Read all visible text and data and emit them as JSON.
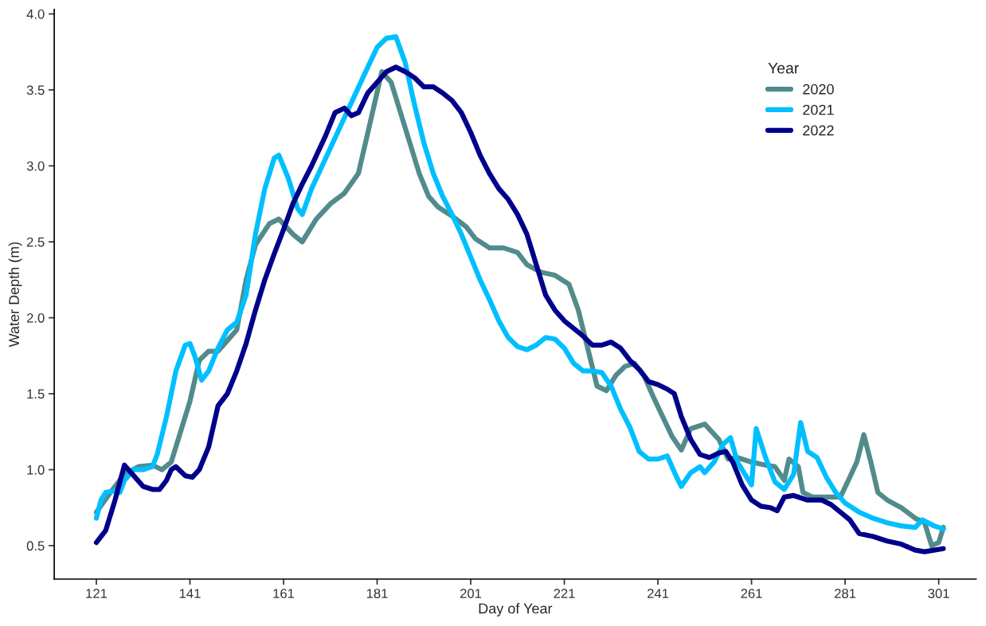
{
  "chart_data": {
    "type": "line",
    "xlabel": "Day of Year",
    "ylabel": "Water Depth (m)",
    "legend_title": "Year",
    "legend": "top right",
    "grid": false,
    "marker": "none",
    "line_style": "solid",
    "xlim": [
      112,
      309
    ],
    "xticks": [
      121,
      141,
      161,
      181,
      201,
      221,
      241,
      261,
      281,
      301
    ],
    "ylim": [
      0.28,
      4.03
    ],
    "yticks": [
      {
        "value": 0.5,
        "label": "0.5"
      },
      {
        "value": 1.0,
        "label": "1.0"
      },
      {
        "value": 1.5,
        "label": "1.5"
      },
      {
        "value": 2.0,
        "label": "2.0"
      },
      {
        "value": 2.5,
        "label": "2.5"
      },
      {
        "value": 3.0,
        "label": "3.0"
      },
      {
        "value": 3.5,
        "label": "3.5"
      },
      {
        "value": 4.0,
        "label": "4.0"
      }
    ],
    "series": [
      {
        "name": "2020",
        "color": "#528b8b",
        "x": [
          121,
          124,
          127,
          130,
          133,
          135,
          137,
          139,
          141,
          143,
          145,
          147,
          149,
          151,
          153,
          155,
          158,
          160,
          163,
          165,
          168,
          171,
          174,
          177,
          180,
          182,
          184,
          186,
          188,
          190,
          192,
          194,
          197,
          200,
          202,
          205,
          208,
          211,
          213,
          216,
          219,
          222,
          224,
          226,
          228,
          230,
          232,
          234,
          236,
          238,
          240,
          242,
          244,
          246,
          248,
          251,
          254,
          256,
          258,
          261,
          264,
          266,
          268,
          269,
          271,
          272,
          274,
          277,
          280,
          282,
          283.5,
          285,
          286.5,
          288,
          290,
          293,
          296,
          298,
          299.5,
          301,
          302
        ],
        "values": [
          0.72,
          0.85,
          0.97,
          1.02,
          1.03,
          1.0,
          1.05,
          1.25,
          1.45,
          1.72,
          1.78,
          1.78,
          1.85,
          1.92,
          2.25,
          2.48,
          2.62,
          2.65,
          2.55,
          2.5,
          2.65,
          2.75,
          2.82,
          2.95,
          3.35,
          3.62,
          3.55,
          3.35,
          3.15,
          2.95,
          2.8,
          2.73,
          2.67,
          2.6,
          2.52,
          2.46,
          2.46,
          2.43,
          2.35,
          2.3,
          2.28,
          2.22,
          2.05,
          1.8,
          1.55,
          1.52,
          1.62,
          1.68,
          1.7,
          1.62,
          1.48,
          1.35,
          1.22,
          1.13,
          1.27,
          1.3,
          1.2,
          1.07,
          1.08,
          1.05,
          1.03,
          1.02,
          0.93,
          1.07,
          1.02,
          0.85,
          0.82,
          0.82,
          0.82,
          0.95,
          1.05,
          1.23,
          1.05,
          0.85,
          0.8,
          0.75,
          0.68,
          0.65,
          0.5,
          0.52,
          0.62
        ]
      },
      {
        "name": "2021",
        "color": "#00bfff",
        "x": [
          121,
          122,
          123,
          125,
          126,
          127,
          129,
          131,
          133,
          134,
          136,
          138,
          140,
          141,
          142,
          143.5,
          145,
          147,
          149,
          151,
          153,
          155,
          157,
          159,
          160,
          162,
          164,
          165,
          167,
          170,
          173,
          176,
          179,
          181,
          183,
          185,
          187,
          189,
          191,
          193,
          195,
          197,
          199,
          201,
          203,
          205,
          207,
          209,
          211,
          213,
          215,
          217,
          219,
          221,
          223,
          225,
          227,
          229,
          231,
          233,
          235,
          237,
          239,
          241,
          243,
          245,
          246,
          248,
          250,
          251,
          253,
          255,
          256.5,
          258,
          260,
          261,
          262,
          264,
          266,
          268,
          270,
          271.5,
          273,
          275,
          277,
          279,
          281,
          284,
          287,
          290,
          293,
          296,
          297.5,
          300,
          302
        ],
        "values": [
          0.68,
          0.8,
          0.85,
          0.86,
          0.85,
          0.93,
          1.0,
          1.0,
          1.02,
          1.1,
          1.35,
          1.65,
          1.82,
          1.83,
          1.75,
          1.59,
          1.65,
          1.8,
          1.92,
          1.97,
          2.15,
          2.55,
          2.85,
          3.05,
          3.07,
          2.92,
          2.72,
          2.68,
          2.85,
          3.05,
          3.25,
          3.45,
          3.65,
          3.78,
          3.84,
          3.85,
          3.68,
          3.4,
          3.15,
          2.95,
          2.8,
          2.68,
          2.55,
          2.4,
          2.25,
          2.12,
          1.98,
          1.87,
          1.81,
          1.79,
          1.82,
          1.87,
          1.86,
          1.8,
          1.7,
          1.65,
          1.65,
          1.64,
          1.55,
          1.4,
          1.28,
          1.12,
          1.07,
          1.07,
          1.09,
          0.95,
          0.89,
          0.98,
          1.02,
          0.98,
          1.05,
          1.17,
          1.21,
          1.05,
          0.95,
          0.9,
          1.27,
          1.08,
          0.92,
          0.87,
          0.97,
          1.31,
          1.12,
          1.08,
          0.95,
          0.85,
          0.78,
          0.72,
          0.68,
          0.65,
          0.63,
          0.62,
          0.67,
          0.63,
          0.61
        ]
      },
      {
        "name": "2022",
        "color": "#00008b",
        "x": [
          121,
          123,
          125,
          127,
          129,
          131,
          133,
          134.5,
          136,
          137,
          138,
          140,
          141.5,
          143,
          145,
          147,
          149,
          151,
          153,
          155,
          157,
          159,
          161,
          163,
          165,
          167,
          170,
          172,
          174,
          175.5,
          177,
          179,
          181,
          183,
          185,
          187,
          189,
          191,
          193,
          195,
          197,
          199,
          201,
          203,
          205,
          207,
          209,
          211,
          213,
          215,
          217,
          219,
          221,
          223,
          225,
          227,
          229,
          231,
          233,
          235,
          237,
          239,
          241,
          243,
          244.5,
          246,
          248,
          250,
          252,
          254,
          255.5,
          257,
          259,
          261,
          263,
          265,
          266.5,
          268,
          270,
          273,
          276,
          278,
          280,
          282,
          284,
          287,
          290,
          293,
          296,
          298,
          300,
          302
        ],
        "values": [
          0.52,
          0.6,
          0.8,
          1.03,
          0.96,
          0.89,
          0.87,
          0.87,
          0.93,
          1.0,
          1.02,
          0.96,
          0.95,
          1.0,
          1.15,
          1.42,
          1.5,
          1.65,
          1.83,
          2.05,
          2.25,
          2.42,
          2.58,
          2.75,
          2.88,
          3.0,
          3.2,
          3.35,
          3.38,
          3.33,
          3.35,
          3.48,
          3.55,
          3.62,
          3.65,
          3.62,
          3.58,
          3.52,
          3.52,
          3.48,
          3.43,
          3.35,
          3.22,
          3.07,
          2.95,
          2.85,
          2.78,
          2.68,
          2.55,
          2.35,
          2.15,
          2.05,
          1.98,
          1.93,
          1.88,
          1.82,
          1.82,
          1.84,
          1.8,
          1.72,
          1.66,
          1.58,
          1.56,
          1.53,
          1.5,
          1.35,
          1.2,
          1.1,
          1.08,
          1.11,
          1.12,
          1.05,
          0.9,
          0.8,
          0.76,
          0.75,
          0.73,
          0.82,
          0.83,
          0.8,
          0.8,
          0.77,
          0.72,
          0.67,
          0.58,
          0.56,
          0.53,
          0.51,
          0.47,
          0.46,
          0.47,
          0.48
        ]
      }
    ]
  }
}
